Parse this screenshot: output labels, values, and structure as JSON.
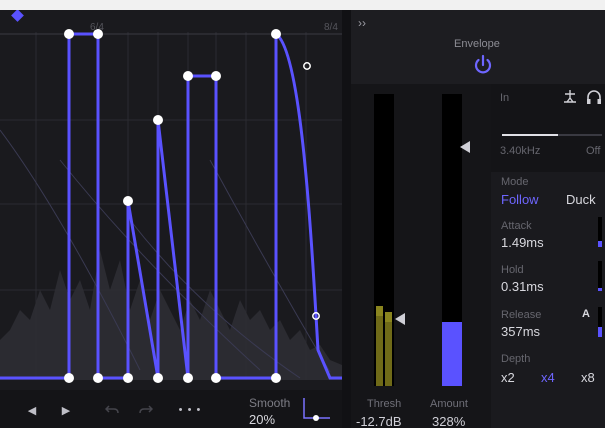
{
  "editor": {
    "bar_labels": [
      "6/4",
      "8/4"
    ],
    "toolbar": {
      "prev_icon": "triangle-left-icon",
      "play_icon": "triangle-right-icon",
      "undo_icon": "undo-icon",
      "redo_icon": "redo-icon",
      "more_label": "• • •",
      "smooth_label": "Smooth",
      "smooth_value": "20%"
    }
  },
  "envelope": {
    "collapse_label": "››",
    "title": "Envelope",
    "power_icon": "power-icon",
    "power_on": true,
    "thresh_label": "Thresh",
    "thresh_value": "-12.7dB",
    "amount_label": "Amount",
    "amount_value": "328%",
    "amount_fill": 0.22,
    "input_level": 0.27
  },
  "sidechain": {
    "in_label": "In",
    "frequency": "3.40kHz",
    "filter_state": "Off",
    "mode_label": "Mode",
    "mode_follow": "Follow",
    "mode_duck": "Duck",
    "attack_label": "Attack",
    "attack_value": "1.49ms",
    "hold_label": "Hold",
    "hold_value": "0.31ms",
    "release_label": "Release",
    "release_value": "357ms",
    "auto_label": "A",
    "depth_label": "Depth",
    "depth_options": [
      "x2",
      "x4",
      "x8"
    ],
    "depth_selected": "x4"
  },
  "colors": {
    "accent": "#5a52ff",
    "meter_olive": "#6f6a18",
    "bg": "#1a1a1e"
  }
}
